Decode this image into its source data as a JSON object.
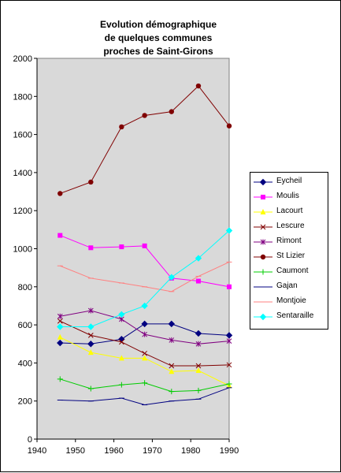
{
  "chart_data": {
    "type": "line",
    "title_lines": [
      "Evolution démographique",
      "de quelques communes",
      "proches de Saint-Girons"
    ],
    "xlabel": "",
    "ylabel": "",
    "xlim": [
      1940,
      1990
    ],
    "ylim": [
      0,
      2000
    ],
    "xticks": [
      1940,
      1950,
      1960,
      1970,
      1980,
      1990
    ],
    "yticks": [
      0,
      200,
      400,
      600,
      800,
      1000,
      1200,
      1400,
      1600,
      1800,
      2000
    ],
    "grid": false,
    "plot_background": "#d9d9d9",
    "legend_position": "right",
    "x": [
      1946,
      1954,
      1962,
      1968,
      1975,
      1982,
      1990
    ],
    "series": [
      {
        "name": "Eycheil",
        "color": "#000080",
        "marker": "diamond",
        "values": [
          505,
          500,
          525,
          605,
          605,
          555,
          545
        ]
      },
      {
        "name": "Moulis",
        "color": "#ff00ff",
        "marker": "square",
        "values": [
          1070,
          1005,
          1010,
          1015,
          845,
          830,
          800
        ]
      },
      {
        "name": "Lacourt",
        "color": "#ffff00",
        "marker": "triangle",
        "values": [
          535,
          455,
          425,
          425,
          355,
          360,
          280
        ]
      },
      {
        "name": "Lescure",
        "color": "#800000",
        "marker": "x",
        "values": [
          620,
          545,
          510,
          450,
          385,
          385,
          390
        ]
      },
      {
        "name": "Rimont",
        "color": "#800080",
        "marker": "star",
        "values": [
          645,
          675,
          630,
          550,
          520,
          500,
          515
        ]
      },
      {
        "name": "St Lizier",
        "color": "#800000",
        "marker": "circle",
        "values": [
          1290,
          1350,
          1640,
          1700,
          1720,
          1855,
          1645
        ]
      },
      {
        "name": "Caumont",
        "color": "#00cc00",
        "marker": "plus",
        "values": [
          315,
          265,
          285,
          295,
          250,
          255,
          290
        ]
      },
      {
        "name": "Gajan",
        "color": "#000080",
        "marker": "dash",
        "values": [
          205,
          200,
          215,
          180,
          200,
          210,
          270
        ]
      },
      {
        "name": "Montjoie",
        "color": "#ff8080",
        "marker": "dash",
        "values": [
          910,
          845,
          820,
          800,
          775,
          855,
          930
        ]
      },
      {
        "name": "Sentaraille",
        "color": "#00ffff",
        "marker": "diamond",
        "values": [
          590,
          590,
          655,
          700,
          850,
          950,
          1095
        ]
      }
    ]
  }
}
